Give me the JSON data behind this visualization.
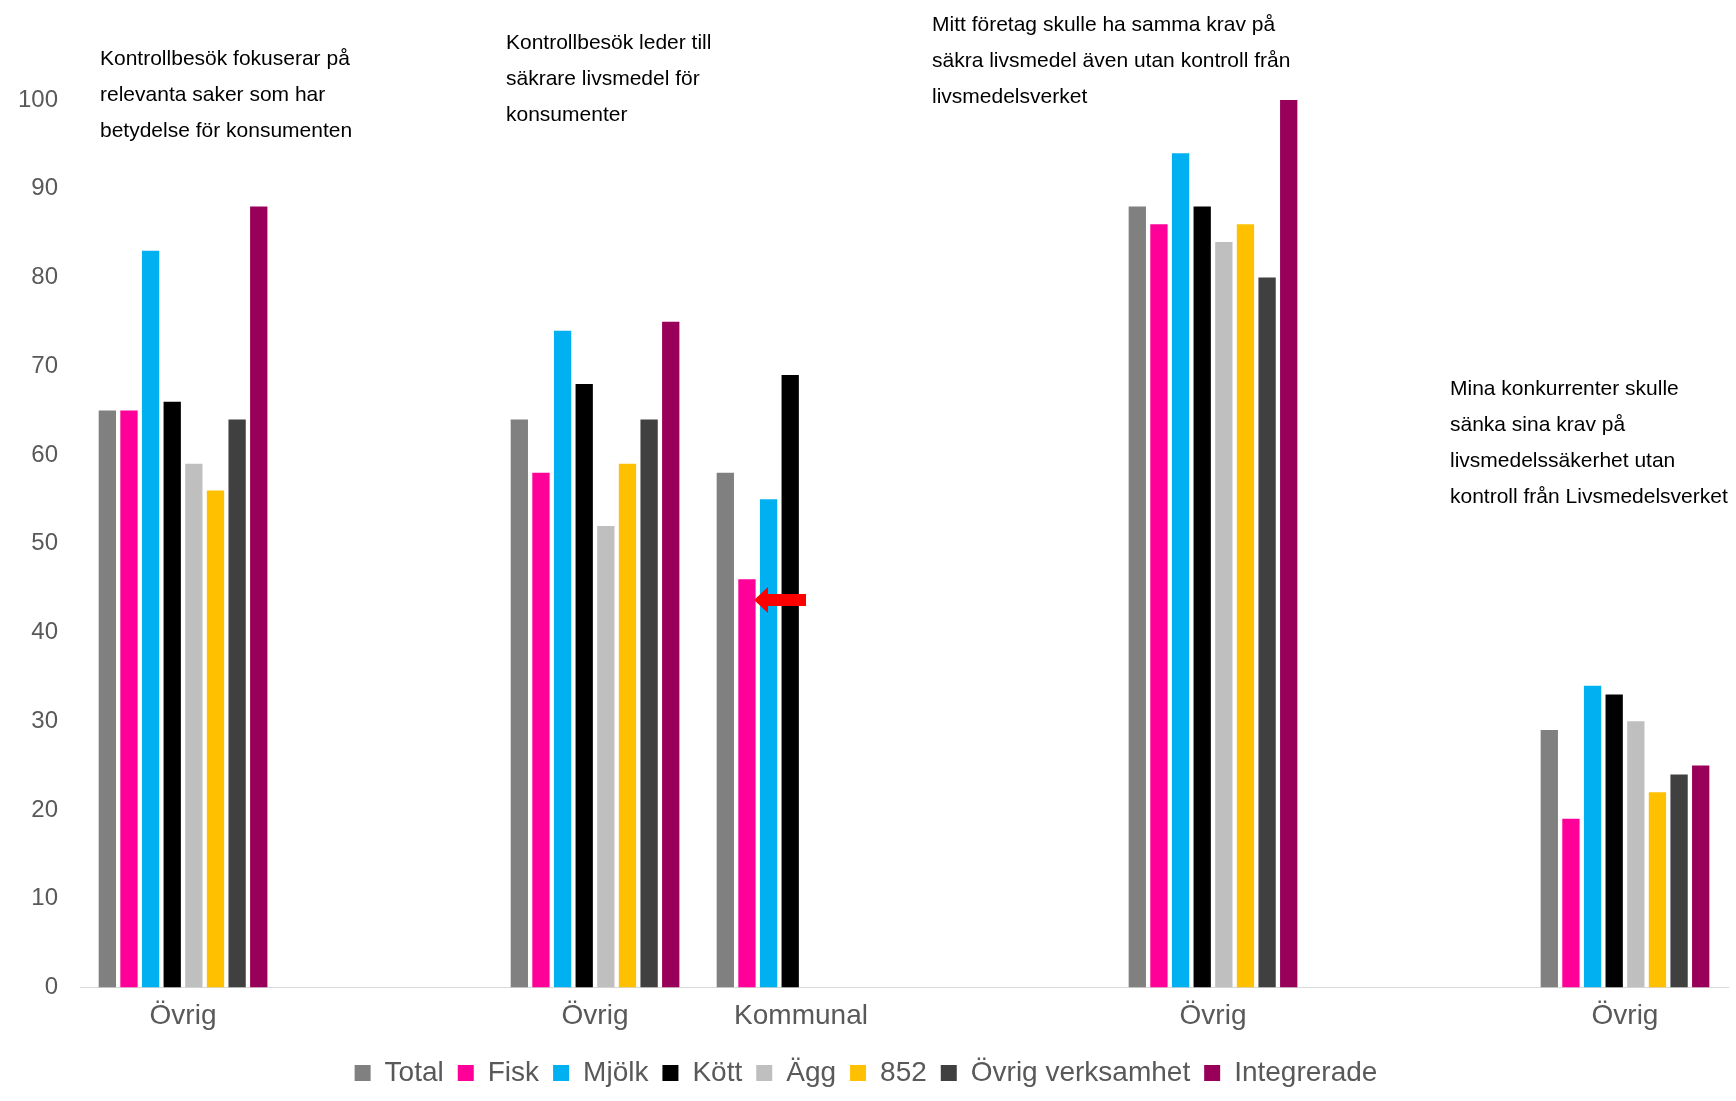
{
  "chart_data": {
    "type": "bar",
    "categories": [
      "Övrig",
      null,
      "Övrig",
      "Kommunal",
      null,
      "Övrig",
      null,
      "Övrig"
    ],
    "series": [
      {
        "name": "Total",
        "color": "#808080",
        "values": [
          65,
          null,
          64,
          58,
          null,
          88,
          null,
          29
        ]
      },
      {
        "name": "Fisk",
        "color": "#ff0099",
        "values": [
          65,
          null,
          58,
          46,
          null,
          86,
          null,
          19
        ]
      },
      {
        "name": "Mjölk",
        "color": "#00b0f0",
        "values": [
          83,
          null,
          74,
          55,
          null,
          94,
          null,
          34
        ]
      },
      {
        "name": "Kött",
        "color": "#000000",
        "values": [
          66,
          null,
          68,
          69,
          null,
          88,
          null,
          33
        ]
      },
      {
        "name": "Ägg",
        "color": "#bfbfbf",
        "values": [
          59,
          null,
          52,
          null,
          null,
          84,
          null,
          30
        ]
      },
      {
        "name": "852",
        "color": "#ffc000",
        "values": [
          56,
          null,
          59,
          null,
          null,
          86,
          null,
          22
        ]
      },
      {
        "name": "Övrig verksamhet",
        "color": "#404040",
        "values": [
          64,
          null,
          64,
          null,
          null,
          80,
          null,
          24
        ]
      },
      {
        "name": "Integrerade",
        "color": "#99005a",
        "values": [
          88,
          null,
          75,
          null,
          null,
          100,
          null,
          25
        ]
      }
    ],
    "ylim": [
      0,
      100
    ],
    "yticks": [
      0,
      10,
      20,
      30,
      40,
      50,
      60,
      70,
      80,
      90,
      100
    ],
    "grid": false,
    "legend": "bottom",
    "annotations": [
      "Kontrollbesök fokuserar på relevanta saker som har betydelse för konsumenten",
      "Kontrollbesök leder till säkrare livsmedel för konsumenter",
      "Mitt företag skulle ha samma krav på säkra livsmedel även utan kontroll från livsmedelsverket",
      "Mina konkurrenter skulle sänka sina krav på livsmedelssäkerhet utan kontroll från Livsmedelsverket"
    ]
  }
}
